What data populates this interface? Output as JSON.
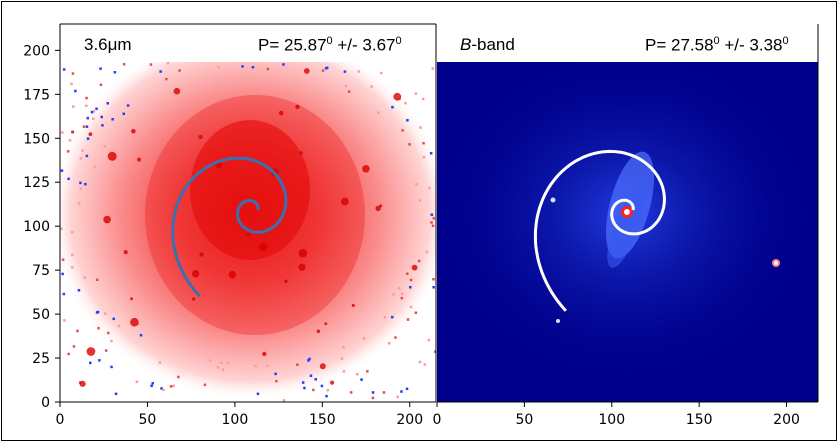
{
  "panels": [
    {
      "name": "3.6um",
      "band_label": "3.6μm",
      "pitch_prefix": "P= 25.87",
      "pitch_deg": "0",
      "pitch_err_prefix": " +/- 3.67",
      "pitch_err_deg": "0",
      "x_ticks": [
        "0",
        "50",
        "100",
        "150",
        "200"
      ],
      "y_ticks": [
        "0",
        "25",
        "50",
        "75",
        "100",
        "125",
        "150",
        "175",
        "200"
      ],
      "spiral_color": "#3a6fb0",
      "background_color": "#ffffff"
    },
    {
      "name": "B-band",
      "band_label_italic": "B",
      "band_label_rest": "-band",
      "pitch_prefix": "P= 27.58",
      "pitch_deg": "0",
      "pitch_err_prefix": " +/- 3.38",
      "pitch_err_deg": "0",
      "x_ticks": [
        "0",
        "50",
        "100",
        "150",
        "200"
      ],
      "spiral_color": "#ffffff",
      "background_color": "#00008b"
    }
  ],
  "colors": {
    "red_core": "#e60000",
    "red_halo": "#ffb3b3",
    "blue_bg": "#00008b",
    "blue_arm": "#6a8cff"
  }
}
